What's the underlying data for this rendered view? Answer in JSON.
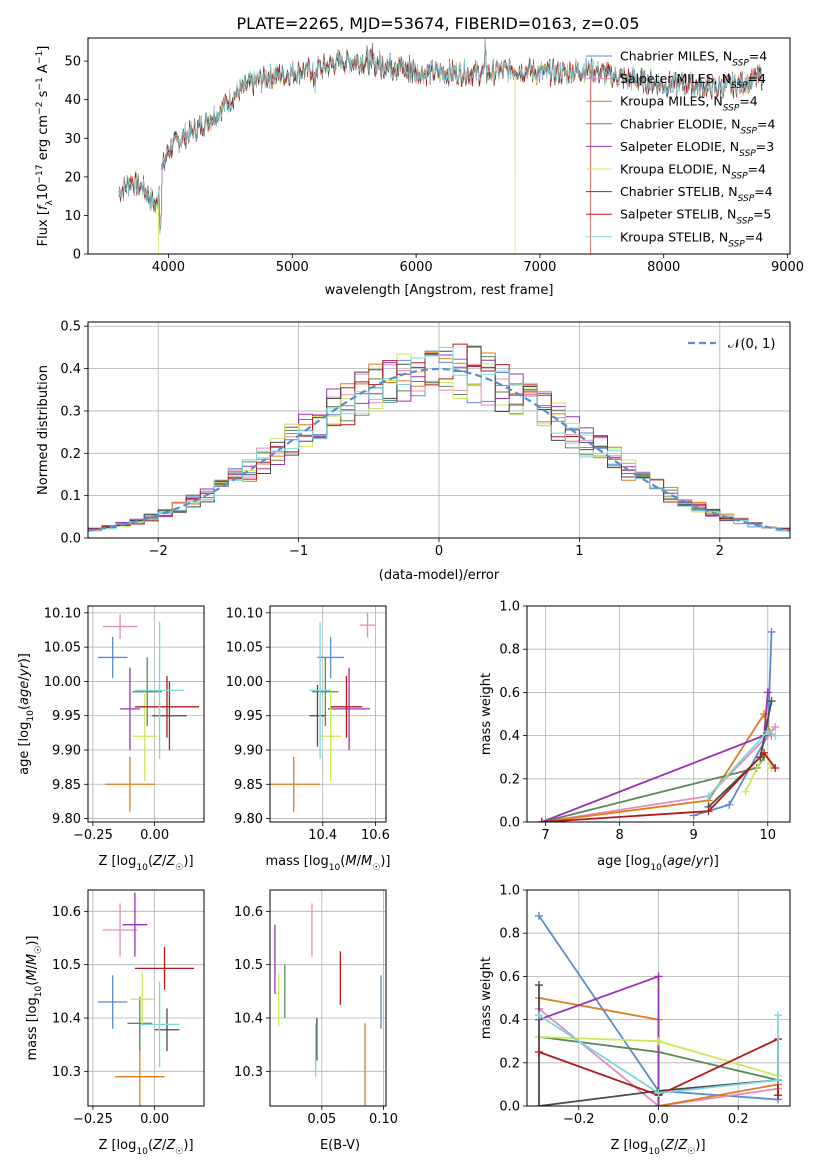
{
  "figure_title": "PLATE=2265, MJD=53674, FIBERID=0163, z=0.05",
  "colors": {
    "Chabrier MILES": "#5b8bd0",
    "Salpeter MILES": "#e58bbd",
    "Kroupa MILES": "#e07b20",
    "Chabrier ELODIE": "#5a8a55",
    "Salpeter ELODIE": "#9a33b3",
    "Kroupa ELODIE": "#cfe85a",
    "Chabrier STELIB": "#4a4a4a",
    "Salpeter STELIB": "#b31b1b",
    "Kroupa STELIB": "#7ad8dd",
    "gaussian": "#5b8bd0"
  },
  "chart_data": [
    {
      "id": "spectrum",
      "type": "line",
      "title": "PLATE=2265, MJD=53674, FIBERID=0163, z=0.05",
      "xlabel": "wavelength [Angstrom, rest frame]",
      "ylabel": "Flux [f_λ 10^-17 erg cm^-2 s^-1 A^-1]",
      "xlim": [
        3350,
        9020
      ],
      "ylim": [
        0,
        56
      ],
      "xticks": [
        4000,
        5000,
        6000,
        7000,
        8000,
        9000
      ],
      "yticks": [
        0,
        10,
        20,
        30,
        40,
        50
      ],
      "grid": false,
      "legend_position": "upper-right",
      "continuum": {
        "x": [
          3600,
          3700,
          3800,
          3900,
          3950,
          4000,
          4100,
          4200,
          4300,
          4400,
          4500,
          4600,
          4800,
          5000,
          5200,
          5400,
          5600,
          5800,
          6000,
          6200,
          6400,
          6600,
          6800,
          7000,
          7200,
          7400,
          7600,
          7800,
          8000,
          8200,
          8400,
          8600,
          8800
        ],
        "y": [
          16,
          19,
          17,
          12,
          22,
          27,
          30,
          32,
          34,
          37,
          40,
          43,
          46,
          47,
          48,
          50,
          50,
          49,
          47,
          47,
          47,
          47,
          48,
          47,
          47,
          48,
          46,
          45,
          44,
          44,
          43,
          44,
          46
        ]
      },
      "series": [
        {
          "name": "Chabrier MILES, N_SSP=4",
          "label_main": "Chabrier MILES, N",
          "label_sub": "SSP",
          "label_tail": "=4"
        },
        {
          "name": "Salpeter MILES, N_SSP=4",
          "label_main": "Salpeter MILES, N",
          "label_sub": "SSP",
          "label_tail": "=4"
        },
        {
          "name": "Kroupa MILES, N_SSP=4",
          "label_main": "Kroupa MILES, N",
          "label_sub": "SSP",
          "label_tail": "=4"
        },
        {
          "name": "Chabrier ELODIE, N_SSP=4",
          "label_main": "Chabrier ELODIE, N",
          "label_sub": "SSP",
          "label_tail": "=4"
        },
        {
          "name": "Salpeter ELODIE, N_SSP=3",
          "label_main": "Salpeter ELODIE, N",
          "label_sub": "SSP",
          "label_tail": "=3"
        },
        {
          "name": "Kroupa ELODIE, N_SSP=4",
          "label_main": "Kroupa ELODIE, N",
          "label_sub": "SSP",
          "label_tail": "=4"
        },
        {
          "name": "Chabrier STELIB, N_SSP=4",
          "label_main": "Chabrier STELIB, N",
          "label_sub": "SSP",
          "label_tail": "=4"
        },
        {
          "name": "Salpeter STELIB, N_SSP=5",
          "label_main": "Salpeter STELIB, N",
          "label_sub": "SSP",
          "label_tail": "=5"
        },
        {
          "name": "Kroupa STELIB, N_SSP=4",
          "label_main": "Kroupa STELIB, N",
          "label_sub": "SSP",
          "label_tail": "=4"
        }
      ]
    },
    {
      "id": "residuals",
      "type": "line",
      "xlabel": "(data-model)/error",
      "ylabel": "Normed distribution",
      "xlim": [
        -2.5,
        2.5
      ],
      "ylim": [
        0,
        0.51
      ],
      "xticks": [
        -2,
        -1,
        0,
        1,
        2
      ],
      "yticks": [
        0.0,
        0.1,
        0.2,
        0.3,
        0.4,
        0.5
      ],
      "grid": true,
      "legend_position": "upper-right",
      "legend": "𝒩(0, 1)",
      "bins": {
        "start": -2.5,
        "width": 0.1,
        "count": 50
      }
    },
    {
      "id": "age-vs-z",
      "type": "scatter",
      "xlabel": "Z [log10(Z/Z☉)]",
      "ylabel": "age [log10(age/yr)]",
      "xlim": [
        -0.27,
        0.2
      ],
      "ylim": [
        9.795,
        10.11
      ],
      "xticks": [
        -0.25,
        0.0
      ],
      "yticks": [
        9.8,
        9.85,
        9.9,
        9.95,
        10.0,
        10.05,
        10.1
      ],
      "grid": true,
      "points": [
        {
          "name": "Chabrier MILES",
          "x": -0.17,
          "y": 10.035,
          "xerr": 0.06,
          "yerr": 0.03
        },
        {
          "name": "Salpeter MILES",
          "x": -0.14,
          "y": 10.08,
          "xerr": 0.07,
          "yerr": 0.018
        },
        {
          "name": "Kroupa MILES",
          "x": -0.1,
          "y": 9.85,
          "xerr": 0.1,
          "yerr": 0.04
        },
        {
          "name": "Chabrier ELODIE",
          "x": -0.03,
          "y": 9.985,
          "xerr": 0.06,
          "yerr": 0.05
        },
        {
          "name": "Salpeter ELODIE",
          "x": -0.1,
          "y": 9.96,
          "xerr": 0.04,
          "yerr": 0.06
        },
        {
          "name": "Kroupa ELODIE",
          "x": -0.04,
          "y": 9.92,
          "xerr": 0.05,
          "yerr": 0.065
        },
        {
          "name": "Chabrier STELIB",
          "x": 0.06,
          "y": 9.95,
          "xerr": 0.07,
          "yerr": 0.05
        },
        {
          "name": "Salpeter STELIB",
          "x": 0.05,
          "y": 9.963,
          "xerr": 0.13,
          "yerr": 0.045
        },
        {
          "name": "Kroupa STELIB",
          "x": 0.02,
          "y": 9.987,
          "xerr": 0.1,
          "yerr": 0.1
        }
      ]
    },
    {
      "id": "age-vs-mass",
      "type": "scatter",
      "xlabel": "mass [log10(M/M☉)]",
      "ylabel": "",
      "xlim": [
        10.2,
        10.64
      ],
      "ylim": [
        9.795,
        10.11
      ],
      "xticks": [
        10.4,
        10.6
      ],
      "yticks": [
        9.8,
        9.85,
        9.9,
        9.95,
        10.0,
        10.05,
        10.1
      ],
      "grid": true,
      "points": [
        {
          "name": "Chabrier MILES",
          "x": 10.43,
          "y": 10.035,
          "xerr": 0.05,
          "yerr": 0.03
        },
        {
          "name": "Salpeter MILES",
          "x": 10.57,
          "y": 10.082,
          "xerr": 0.03,
          "yerr": 0.018
        },
        {
          "name": "Kroupa MILES",
          "x": 10.29,
          "y": 9.85,
          "xerr": 0.1,
          "yerr": 0.04
        },
        {
          "name": "Chabrier ELODIE",
          "x": 10.41,
          "y": 9.985,
          "xerr": 0.05,
          "yerr": 0.05
        },
        {
          "name": "Salpeter ELODIE",
          "x": 10.5,
          "y": 9.96,
          "xerr": 0.08,
          "yerr": 0.06
        },
        {
          "name": "Kroupa ELODIE",
          "x": 10.43,
          "y": 9.92,
          "xerr": 0.04,
          "yerr": 0.065
        },
        {
          "name": "Chabrier STELIB",
          "x": 10.38,
          "y": 9.95,
          "xerr": 0.03,
          "yerr": 0.045
        },
        {
          "name": "Salpeter STELIB",
          "x": 10.49,
          "y": 9.963,
          "xerr": 0.06,
          "yerr": 0.045
        },
        {
          "name": "Kroupa STELIB",
          "x": 10.39,
          "y": 9.987,
          "xerr": 0.04,
          "yerr": 0.1
        }
      ]
    },
    {
      "id": "massweight-vs-age",
      "type": "line",
      "xlabel": "age [log10(age/yr)]",
      "ylabel": "mass weight",
      "xlim": [
        6.75,
        10.3
      ],
      "ylim": [
        0,
        1.0
      ],
      "xticks": [
        7,
        8,
        9,
        10
      ],
      "yticks": [
        0.0,
        0.2,
        0.4,
        0.6,
        0.8,
        1.0
      ],
      "grid": true,
      "series": [
        {
          "name": "Chabrier MILES",
          "x": [
            9.0,
            9.48,
            10.0,
            10.05
          ],
          "y": [
            0.03,
            0.08,
            0.4,
            0.88
          ]
        },
        {
          "name": "Salpeter MILES",
          "x": [
            6.95,
            9.2,
            10.0,
            10.1
          ],
          "y": [
            0.0,
            0.12,
            0.4,
            0.44
          ]
        },
        {
          "name": "Kroupa MILES",
          "x": [
            6.95,
            9.2,
            9.95,
            10.05
          ],
          "y": [
            0.0,
            0.1,
            0.5,
            0.4
          ]
        },
        {
          "name": "Chabrier ELODIE",
          "x": [
            6.95,
            9.85,
            9.95
          ],
          "y": [
            0.0,
            0.25,
            0.3
          ]
        },
        {
          "name": "Salpeter ELODIE",
          "x": [
            6.95,
            9.95,
            10.0
          ],
          "y": [
            0.0,
            0.4,
            0.6
          ]
        },
        {
          "name": "Kroupa ELODIE",
          "x": [
            9.7,
            9.95,
            10.05
          ],
          "y": [
            0.14,
            0.32,
            0.25
          ]
        },
        {
          "name": "Chabrier STELIB",
          "x": [
            9.2,
            9.9,
            10.05
          ],
          "y": [
            0.07,
            0.3,
            0.56
          ]
        },
        {
          "name": "Salpeter STELIB",
          "x": [
            6.95,
            9.2,
            9.95,
            10.1
          ],
          "y": [
            0.0,
            0.05,
            0.32,
            0.25
          ]
        },
        {
          "name": "Kroupa STELIB",
          "x": [
            9.2,
            10.0,
            10.1
          ],
          "y": [
            0.12,
            0.42,
            0.4
          ]
        }
      ]
    },
    {
      "id": "mass-vs-z",
      "type": "scatter",
      "xlabel": "Z [log10(Z/Z☉)]",
      "ylabel": "mass [log10(M/M☉)]",
      "xlim": [
        -0.27,
        0.2
      ],
      "ylim": [
        10.235,
        10.64
      ],
      "xticks": [
        -0.25,
        0.0
      ],
      "yticks": [
        10.3,
        10.4,
        10.5,
        10.6
      ],
      "grid": true,
      "points": [
        {
          "name": "Chabrier MILES",
          "x": -0.17,
          "y": 10.43,
          "xerr": 0.06,
          "yerr": 0.05
        },
        {
          "name": "Salpeter MILES",
          "x": -0.14,
          "y": 10.565,
          "xerr": 0.07,
          "yerr": 0.05
        },
        {
          "name": "Kroupa MILES",
          "x": -0.06,
          "y": 10.29,
          "xerr": 0.1,
          "yerr": 0.1
        },
        {
          "name": "Chabrier ELODIE",
          "x": -0.06,
          "y": 10.39,
          "xerr": 0.05,
          "yerr": 0.05
        },
        {
          "name": "Salpeter ELODIE",
          "x": -0.08,
          "y": 10.575,
          "xerr": 0.05,
          "yerr": 0.06
        },
        {
          "name": "Kroupa ELODIE",
          "x": -0.05,
          "y": 10.435,
          "xerr": 0.05,
          "yerr": 0.05
        },
        {
          "name": "Chabrier STELIB",
          "x": 0.05,
          "y": 10.378,
          "xerr": 0.05,
          "yerr": 0.04
        },
        {
          "name": "Salpeter STELIB",
          "x": 0.04,
          "y": 10.493,
          "xerr": 0.12,
          "yerr": 0.04
        },
        {
          "name": "Kroupa STELIB",
          "x": 0.02,
          "y": 10.388,
          "xerr": 0.08,
          "yerr": 0.08
        }
      ]
    },
    {
      "id": "mass-vs-ebv",
      "type": "scatter",
      "xlabel": "E(B-V)",
      "ylabel": "",
      "xlim": [
        0.008,
        0.102
      ],
      "ylim": [
        10.235,
        10.64
      ],
      "xticks": [
        0.05,
        0.1
      ],
      "xticklabels": [
        "0.05",
        "0.10"
      ],
      "yticks": [
        10.3,
        10.4,
        10.5,
        10.6
      ],
      "grid": true,
      "points": [
        {
          "name": "Chabrier MILES",
          "x": 0.098,
          "y": 10.43,
          "xerr": 0.0,
          "yerr": 0.05
        },
        {
          "name": "Salpeter MILES",
          "x": 0.042,
          "y": 10.565,
          "xerr": 0.0,
          "yerr": 0.05
        },
        {
          "name": "Kroupa MILES",
          "x": 0.085,
          "y": 10.29,
          "xerr": 0.0,
          "yerr": 0.1
        },
        {
          "name": "Chabrier ELODIE",
          "x": 0.02,
          "y": 10.45,
          "xerr": 0.0,
          "yerr": 0.05
        },
        {
          "name": "Salpeter ELODIE",
          "x": 0.012,
          "y": 10.51,
          "xerr": 0.0,
          "yerr": 0.065
        },
        {
          "name": "Kroupa ELODIE",
          "x": 0.015,
          "y": 10.435,
          "xerr": 0.0,
          "yerr": 0.05
        },
        {
          "name": "Chabrier STELIB",
          "x": 0.046,
          "y": 10.36,
          "xerr": 0.0,
          "yerr": 0.04
        },
        {
          "name": "Salpeter STELIB",
          "x": 0.065,
          "y": 10.475,
          "xerr": 0.0,
          "yerr": 0.05
        },
        {
          "name": "Kroupa STELIB",
          "x": 0.045,
          "y": 10.34,
          "xerr": 0.0,
          "yerr": 0.05
        }
      ]
    },
    {
      "id": "massweight-vs-z",
      "type": "line",
      "xlabel": "Z [log10(Z/Z☉)]",
      "ylabel": "mass weight",
      "xlim": [
        -0.33,
        0.33
      ],
      "ylim": [
        0,
        1.0
      ],
      "xticks": [
        -0.2,
        0.0,
        0.2
      ],
      "yticks": [
        0.0,
        0.2,
        0.4,
        0.6,
        0.8,
        1.0
      ],
      "grid": true,
      "series": [
        {
          "name": "Chabrier MILES",
          "x": [
            -0.3,
            0.0,
            0.3,
            0.3
          ],
          "y": [
            0.88,
            0.07,
            0.03,
            0.12
          ]
        },
        {
          "name": "Salpeter MILES",
          "x": [
            -0.3,
            0.0,
            0.3,
            0.3
          ],
          "y": [
            0.45,
            0.0,
            0.08,
            0.12
          ]
        },
        {
          "name": "Kroupa MILES",
          "x": [
            -0.3,
            0.0,
            0.0,
            0.3,
            0.3
          ],
          "y": [
            0.5,
            0.4,
            0.0,
            0.1,
            0.12
          ]
        },
        {
          "name": "Chabrier ELODIE",
          "x": [
            -0.3,
            0.0,
            0.3
          ],
          "y": [
            0.32,
            0.25,
            0.12
          ]
        },
        {
          "name": "Salpeter ELODIE",
          "x": [
            -0.3,
            0.0,
            0.0
          ],
          "y": [
            0.4,
            0.6,
            0.0
          ]
        },
        {
          "name": "Kroupa ELODIE",
          "x": [
            -0.3,
            0.0,
            0.3
          ],
          "y": [
            0.32,
            0.3,
            0.14
          ]
        },
        {
          "name": "Chabrier STELIB",
          "x": [
            -0.3,
            -0.3,
            0.0,
            0.3
          ],
          "y": [
            0.56,
            0.0,
            0.07,
            0.12
          ]
        },
        {
          "name": "Salpeter STELIB",
          "x": [
            -0.3,
            0.0,
            0.3,
            0.3
          ],
          "y": [
            0.25,
            0.05,
            0.31,
            0.05
          ]
        },
        {
          "name": "Kroupa STELIB",
          "x": [
            -0.3,
            0.0,
            0.3,
            0.3
          ],
          "y": [
            0.42,
            0.06,
            0.12,
            0.42
          ]
        }
      ]
    }
  ]
}
